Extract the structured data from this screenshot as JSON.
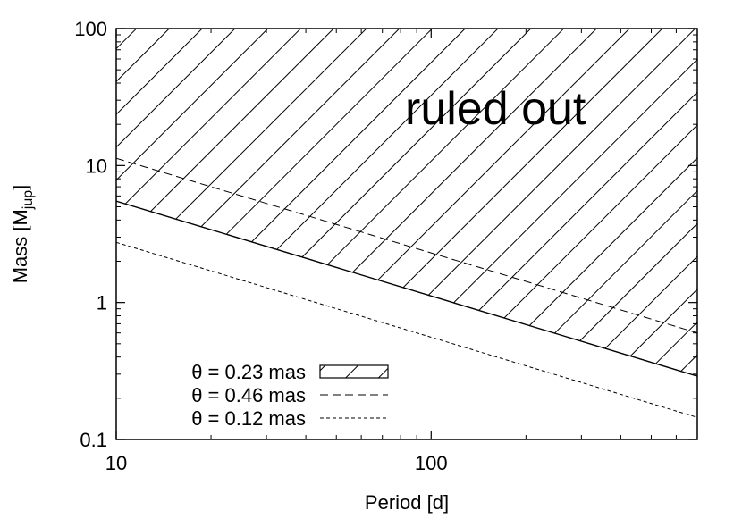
{
  "chart_data": {
    "type": "line",
    "title": "",
    "xlabel": "Period [d]",
    "ylabel": {
      "main": "Mass [M",
      "sub": "jup",
      "end": "]"
    },
    "x_scale": "log",
    "y_scale": "log",
    "xlim": [
      10,
      700
    ],
    "ylim": [
      0.1,
      100
    ],
    "x_ticks": [
      {
        "value": 10,
        "label": "10"
      },
      {
        "value": 100,
        "label": "100"
      }
    ],
    "y_ticks": [
      {
        "value": 0.1,
        "label": "0.1"
      },
      {
        "value": 1,
        "label": "1"
      },
      {
        "value": 10,
        "label": "10"
      },
      {
        "value": 100,
        "label": "100"
      }
    ],
    "grid": false,
    "legend_position": "bottom-left",
    "series": [
      {
        "name": "θ = 0.23 mas",
        "style": "hatched-region",
        "x": [
          10,
          700
        ],
        "y": [
          5.5,
          0.29
        ]
      },
      {
        "name": "θ = 0.46 mas",
        "style": "dashed",
        "x": [
          10,
          700
        ],
        "y": [
          11.3,
          0.6
        ]
      },
      {
        "name": "θ = 0.12 mas",
        "style": "dotted",
        "x": [
          10,
          700
        ],
        "y": [
          2.75,
          0.145
        ]
      }
    ],
    "annotations": [
      {
        "text": "ruled out",
        "x": 160,
        "y": 20
      }
    ]
  }
}
